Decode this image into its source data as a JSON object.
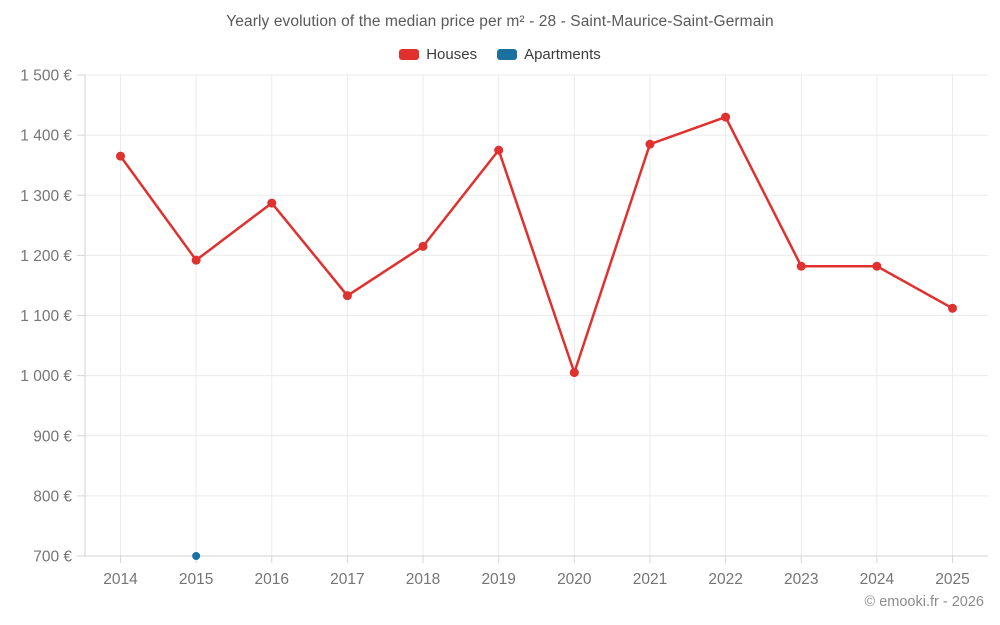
{
  "footer": {
    "credit": "© emooki.fr - 2026"
  },
  "chart_data": {
    "type": "line",
    "title": "Yearly evolution of the median price per m² - 28 - Saint-Maurice-Saint-Germain",
    "xlabel": "",
    "ylabel": "",
    "categories": [
      "2014",
      "2015",
      "2016",
      "2017",
      "2018",
      "2019",
      "2020",
      "2021",
      "2022",
      "2023",
      "2024",
      "2025"
    ],
    "series": [
      {
        "name": "Houses",
        "color": "#e0312e",
        "marker_radius": 4.5,
        "line_width": 2.5,
        "values": [
          1365,
          1192,
          1287,
          1133,
          1215,
          1375,
          1005,
          1385,
          1430,
          1182,
          1182,
          1112
        ]
      },
      {
        "name": "Apartments",
        "color": "#1a71a0",
        "marker_radius": 4,
        "line_width": 2.5,
        "values": [
          null,
          700,
          null,
          null,
          null,
          null,
          null,
          null,
          null,
          null,
          null,
          null
        ]
      }
    ],
    "ylim": [
      700,
      1500
    ],
    "ytick_step": 100,
    "ytick_labels": [
      "700 €",
      "800 €",
      "900 €",
      "1 000 €",
      "1 100 €",
      "1 200 €",
      "1 300 €",
      "1 400 €",
      "1 500 €"
    ],
    "grid": true,
    "legend_position": "top",
    "currency_suffix": " €"
  },
  "theme": {
    "grid_color": "#ebebeb",
    "axis_color": "#d0d0d0",
    "tick_color": "#d6d6d6",
    "tick_label_color": "#757575",
    "title_color": "#595959",
    "legend_text_color": "#3c3c3c",
    "credit_color": "#8c8c8c"
  }
}
